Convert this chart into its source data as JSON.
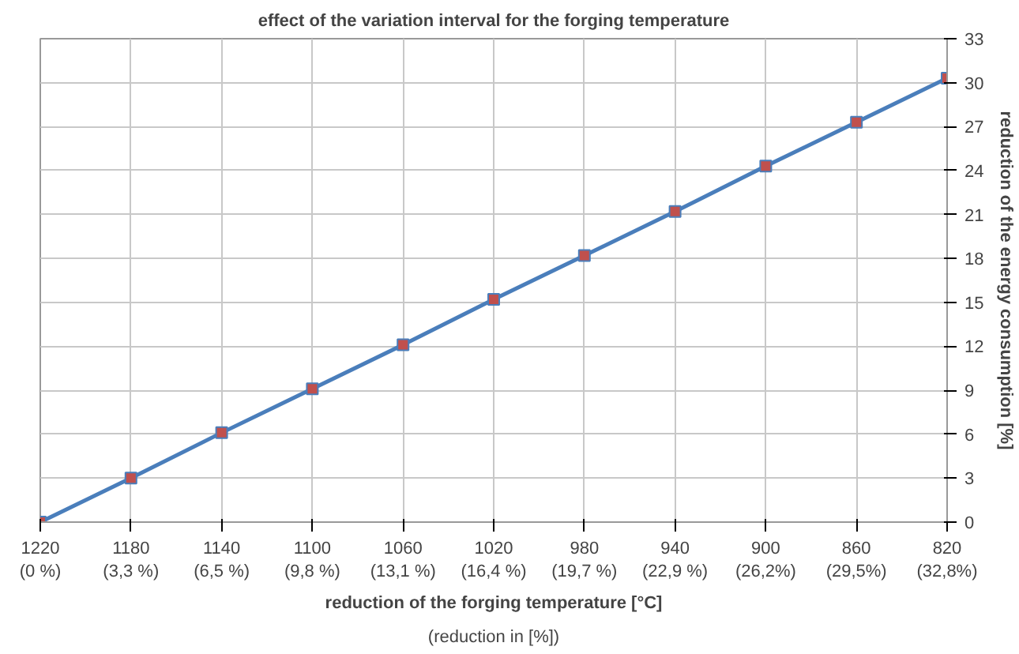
{
  "chart_data": {
    "type": "line",
    "title": "effect of the variation interval for the forging temperature",
    "xlabel": "reduction of the forging temperature [°C]",
    "ylabel": "reduction of the energy consumption [%]",
    "annotations": [
      "(reduction in [%])"
    ],
    "categories": [
      "1220\n(0 %)",
      "1180\n(3,3 %)",
      "1140\n(6,5 %)",
      "1100\n(9,8 %)",
      "1060\n(13,1 %)",
      "1020\n(16,4 %)",
      "980\n(19,7 %)",
      "940\n(22,9 %)",
      "900\n(26,2%)",
      "860\n(29,5%)",
      "820\n(32,8%)"
    ],
    "series": [
      {
        "color": "#4a7ebb",
        "colors": [
          "#c0504d",
          "#c0504d",
          "#c0504d",
          "#c0504d",
          "#c0504d",
          "#c0504d",
          "#c0504d",
          "#c0504d",
          "#c0504d",
          "#c0504d",
          "#c0504d"
        ],
        "values": [
          0,
          3.0,
          6.1,
          9.1,
          12.1,
          15.2,
          18.2,
          21.2,
          24.3,
          27.3,
          30.3
        ]
      }
    ],
    "ylim": [
      0,
      33
    ],
    "yticks": [
      0,
      3,
      6,
      9,
      12,
      15,
      18,
      21,
      24,
      27,
      30,
      33
    ],
    "grid": true,
    "marker": "square",
    "line_style": "solid"
  }
}
